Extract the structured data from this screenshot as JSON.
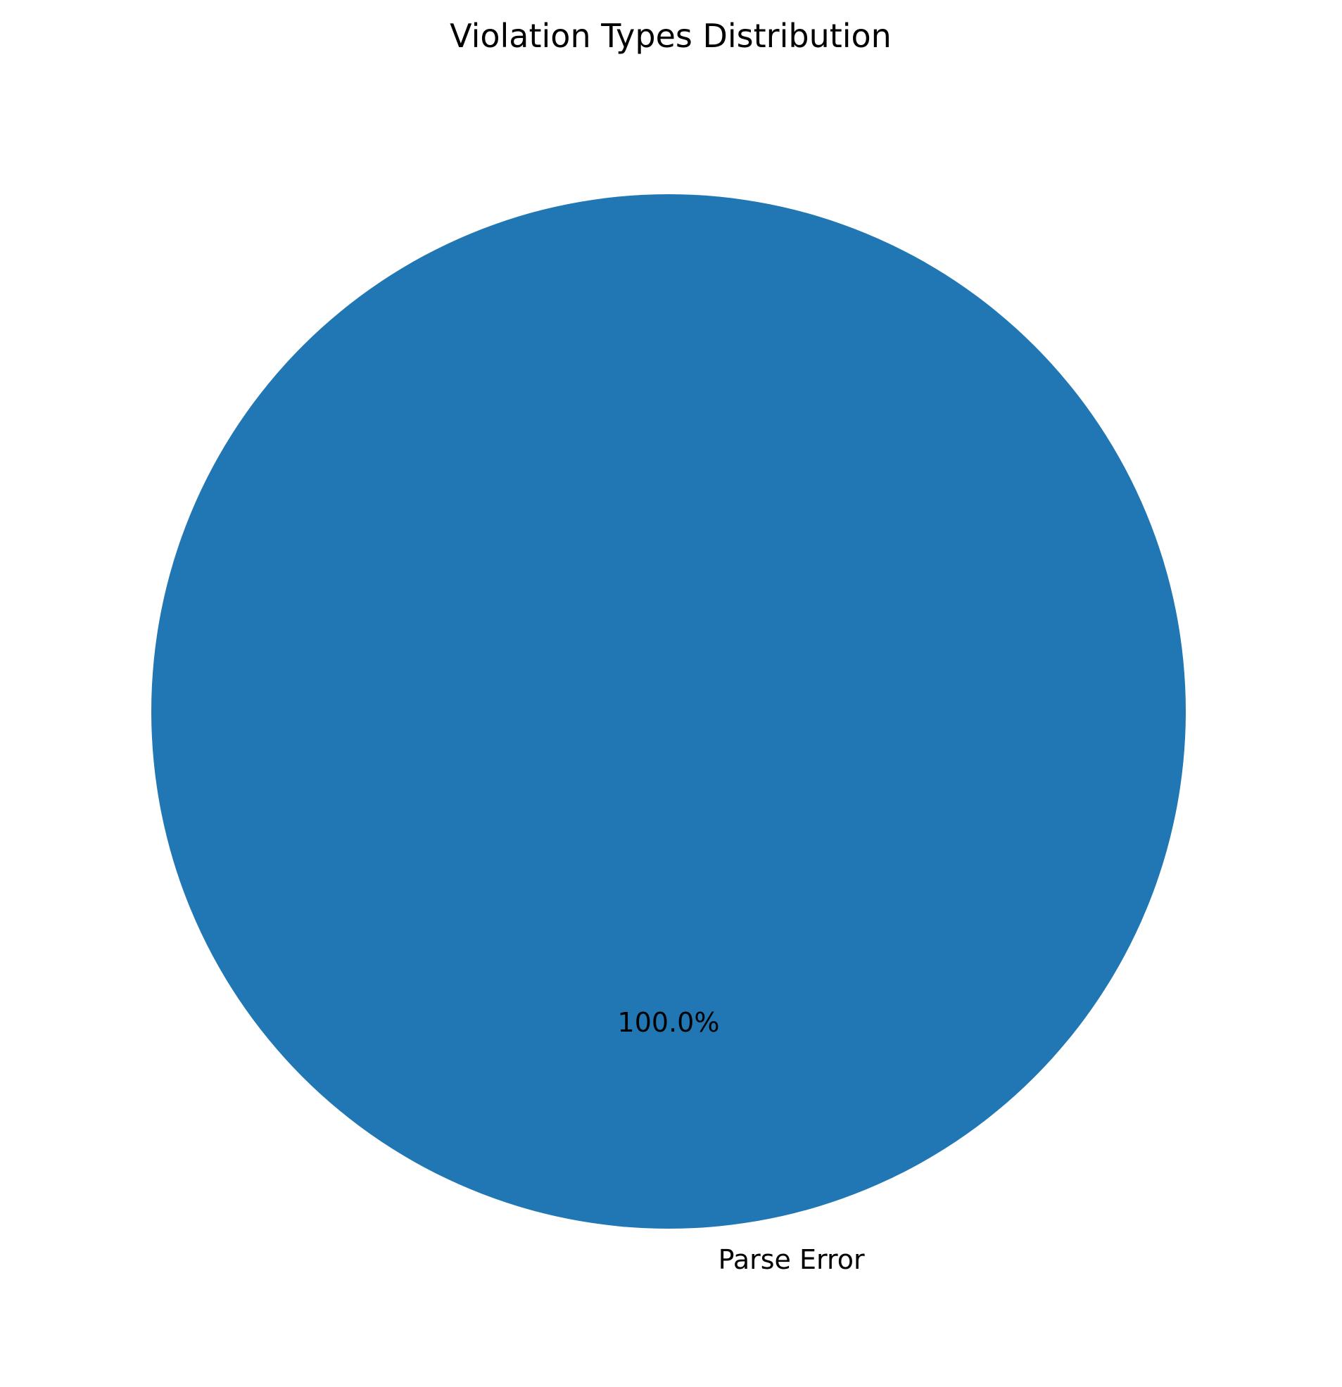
{
  "chart_data": {
    "type": "pie",
    "title": "Violation Types Distribution",
    "slices": [
      {
        "label": "Parse Error",
        "value": 100.0,
        "percent_label": "100.0%",
        "color": "#2077b4"
      }
    ]
  }
}
